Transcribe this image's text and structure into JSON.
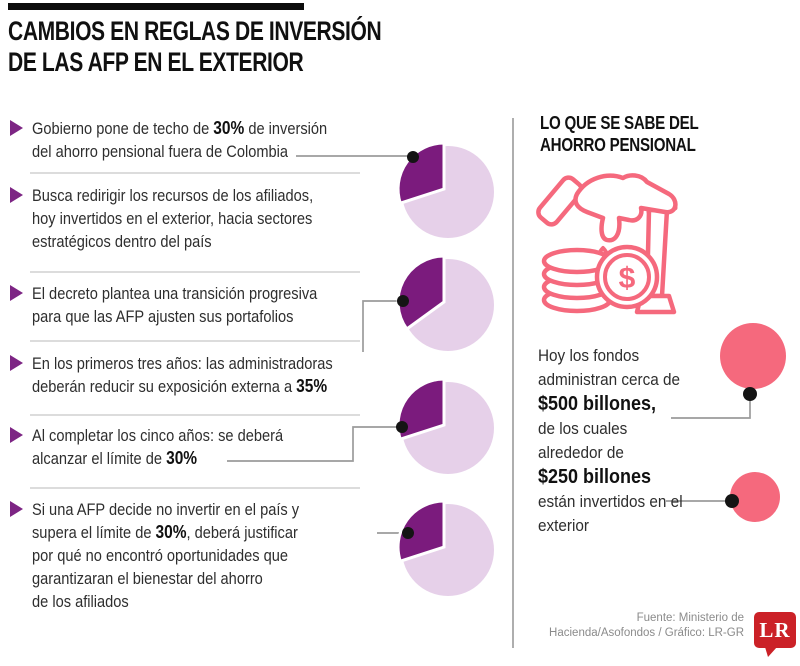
{
  "header": {
    "title_line1": "CAMBIOS EN REGLAS DE INVERSIÓN",
    "title_line2": "DE LAS AFP EN EL EXTERIOR"
  },
  "bullets": [
    {
      "segments": [
        {
          "t": "Gobierno pone de techo de "
        },
        {
          "t": "30%",
          "b": true
        },
        {
          "t": " de inversión"
        },
        {
          "t": "\n"
        },
        {
          "t": "del ahorro pensional fuera de Colombia"
        }
      ]
    },
    {
      "segments": [
        {
          "t": "Busca redirigir los recursos de los afiliados,"
        },
        {
          "t": "\n"
        },
        {
          "t": "hoy invertidos en el exterior, hacia sectores"
        },
        {
          "t": "\n"
        },
        {
          "t": "estratégicos dentro del país"
        }
      ]
    },
    {
      "segments": [
        {
          "t": "El decreto plantea una transición progresiva"
        },
        {
          "t": "\n"
        },
        {
          "t": "para que las AFP ajusten sus portafolios"
        }
      ]
    },
    {
      "segments": [
        {
          "t": "En los primeros tres años: las administradoras"
        },
        {
          "t": "\n"
        },
        {
          "t": "deberán reducir su exposición externa a "
        },
        {
          "t": "35%",
          "b": true
        }
      ]
    },
    {
      "segments": [
        {
          "t": "Al completar los cinco años: se deberá"
        },
        {
          "t": "\n"
        },
        {
          "t": "alcanzar el límite de "
        },
        {
          "t": "30%",
          "b": true
        }
      ]
    },
    {
      "segments": [
        {
          "t": "Si una AFP decide no invertir en el país y"
        },
        {
          "t": "\n"
        },
        {
          "t": "supera el límite de "
        },
        {
          "t": "30%",
          "b": true
        },
        {
          "t": ", deberá justificar"
        },
        {
          "t": "\n"
        },
        {
          "t": "por qué no encontró oportunidades que"
        },
        {
          "t": "\n"
        },
        {
          "t": "garantizaran el bienestar del ahorro"
        },
        {
          "t": "\n"
        },
        {
          "t": "de los afiliados"
        }
      ]
    }
  ],
  "sidebar": {
    "title_line1": "LO QUE SE SABE DEL",
    "title_line2": "AHORRO PENSIONAL",
    "icon": "hand-dropping-coin-with-cane-icon",
    "paragraph_segments": [
      {
        "t": "Hoy los fondos"
      },
      {
        "t": "\n"
      },
      {
        "t": "administran cerca de"
      },
      {
        "t": "\n"
      },
      {
        "t": "$500 billones,",
        "b": true
      },
      {
        "t": "\n"
      },
      {
        "t": "de los cuales"
      },
      {
        "t": "\n"
      },
      {
        "t": "alrededor de"
      },
      {
        "t": "\n"
      },
      {
        "t": "$250 billones",
        "b": true
      },
      {
        "t": "\n"
      },
      {
        "t": "están invertidos en el"
      },
      {
        "t": "\n"
      },
      {
        "t": "exterior"
      }
    ]
  },
  "footer": {
    "source_line1": "Fuente: Ministerio de",
    "source_line2": "Hacienda/Asofondos / Gráfico: LR-GR",
    "logo_text": "LR"
  },
  "colors": {
    "pie_main": "#7b1b7d",
    "pie_rest": "#e6d0e9",
    "bullet_arrow": "#7d2584",
    "pink": "#f5697d",
    "logo_red": "#cb2127",
    "connector_gray": "#9b9b9b"
  },
  "chart_data": [
    {
      "type": "pie",
      "slices": [
        {
          "name": "inversión en el exterior",
          "value": 30
        },
        {
          "name": "resto del portafolio",
          "value": 70
        }
      ],
      "colors": [
        "#7b1b7d",
        "#e6d0e9"
      ],
      "linked_text": "Gobierno pone de techo de 30% de inversión del ahorro pensional fuera de Colombia"
    },
    {
      "type": "pie",
      "slices": [
        {
          "name": "exposición externa",
          "value": 35
        },
        {
          "name": "resto del portafolio",
          "value": 65
        }
      ],
      "colors": [
        "#7b1b7d",
        "#e6d0e9"
      ],
      "linked_text": "En los primeros tres años: las administradoras deberán reducir su exposición externa a 35%"
    },
    {
      "type": "pie",
      "slices": [
        {
          "name": "límite exterior",
          "value": 30
        },
        {
          "name": "resto del portafolio",
          "value": 70
        }
      ],
      "colors": [
        "#7b1b7d",
        "#e6d0e9"
      ],
      "linked_text": "Al completar los cinco años: se deberá alcanzar el límite de 30%"
    },
    {
      "type": "pie",
      "slices": [
        {
          "name": "límite exterior",
          "value": 30
        },
        {
          "name": "resto del portafolio",
          "value": 70
        }
      ],
      "colors": [
        "#7b1b7d",
        "#e6d0e9"
      ],
      "linked_text": "Si una AFP decide no invertir en el país y supera el límite de 30%"
    },
    {
      "type": "bubble",
      "points": [
        {
          "name": "$500 billones",
          "value": 500
        },
        {
          "name": "$250 billones",
          "value": 250
        }
      ],
      "color": "#f5697d"
    }
  ]
}
